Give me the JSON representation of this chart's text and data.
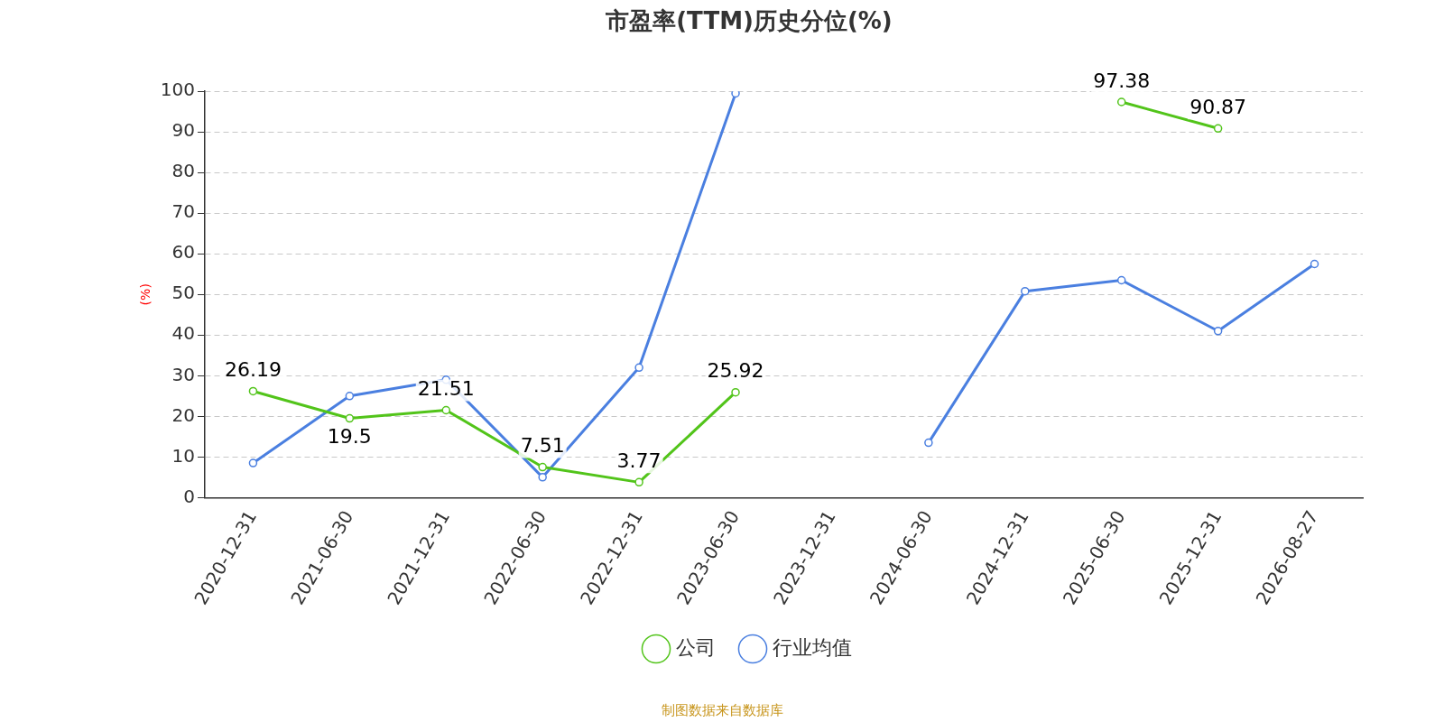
{
  "chart_data": {
    "type": "line",
    "title": "市盈率(TTM)历史分位(%)",
    "ylabel": "(%)",
    "categories": [
      "2020-12-31",
      "2021-06-30",
      "2021-12-31",
      "2022-06-30",
      "2022-12-31",
      "2023-06-30",
      "2023-12-31",
      "2024-06-30",
      "2024-12-31",
      "2025-06-30",
      "2025-12-31",
      "2026-08-27"
    ],
    "series": [
      {
        "name": "公司",
        "color": "#52c41a",
        "values": [
          26.19,
          19.5,
          21.51,
          7.51,
          3.77,
          25.92,
          null,
          null,
          null,
          97.38,
          90.87,
          null
        ],
        "value_labels": [
          "26.19",
          "19.5",
          "21.51",
          "7.51",
          "3.77",
          "25.92",
          null,
          null,
          null,
          "97.38",
          "90.87",
          null
        ]
      },
      {
        "name": "行业均值",
        "color": "#4a7fe0",
        "values": [
          8.5,
          25,
          29,
          5,
          32,
          99.5,
          null,
          13.5,
          50.8,
          53.5,
          41,
          57.5
        ]
      }
    ],
    "ylim": [
      0,
      100
    ],
    "yticks": [
      0,
      10,
      20,
      30,
      40,
      50,
      60,
      70,
      80,
      90,
      100
    ],
    "grid": "y",
    "legend": "bottom",
    "marker": "circle",
    "line_style": "solid",
    "annotations": [
      "制图数据来自数据库"
    ]
  }
}
